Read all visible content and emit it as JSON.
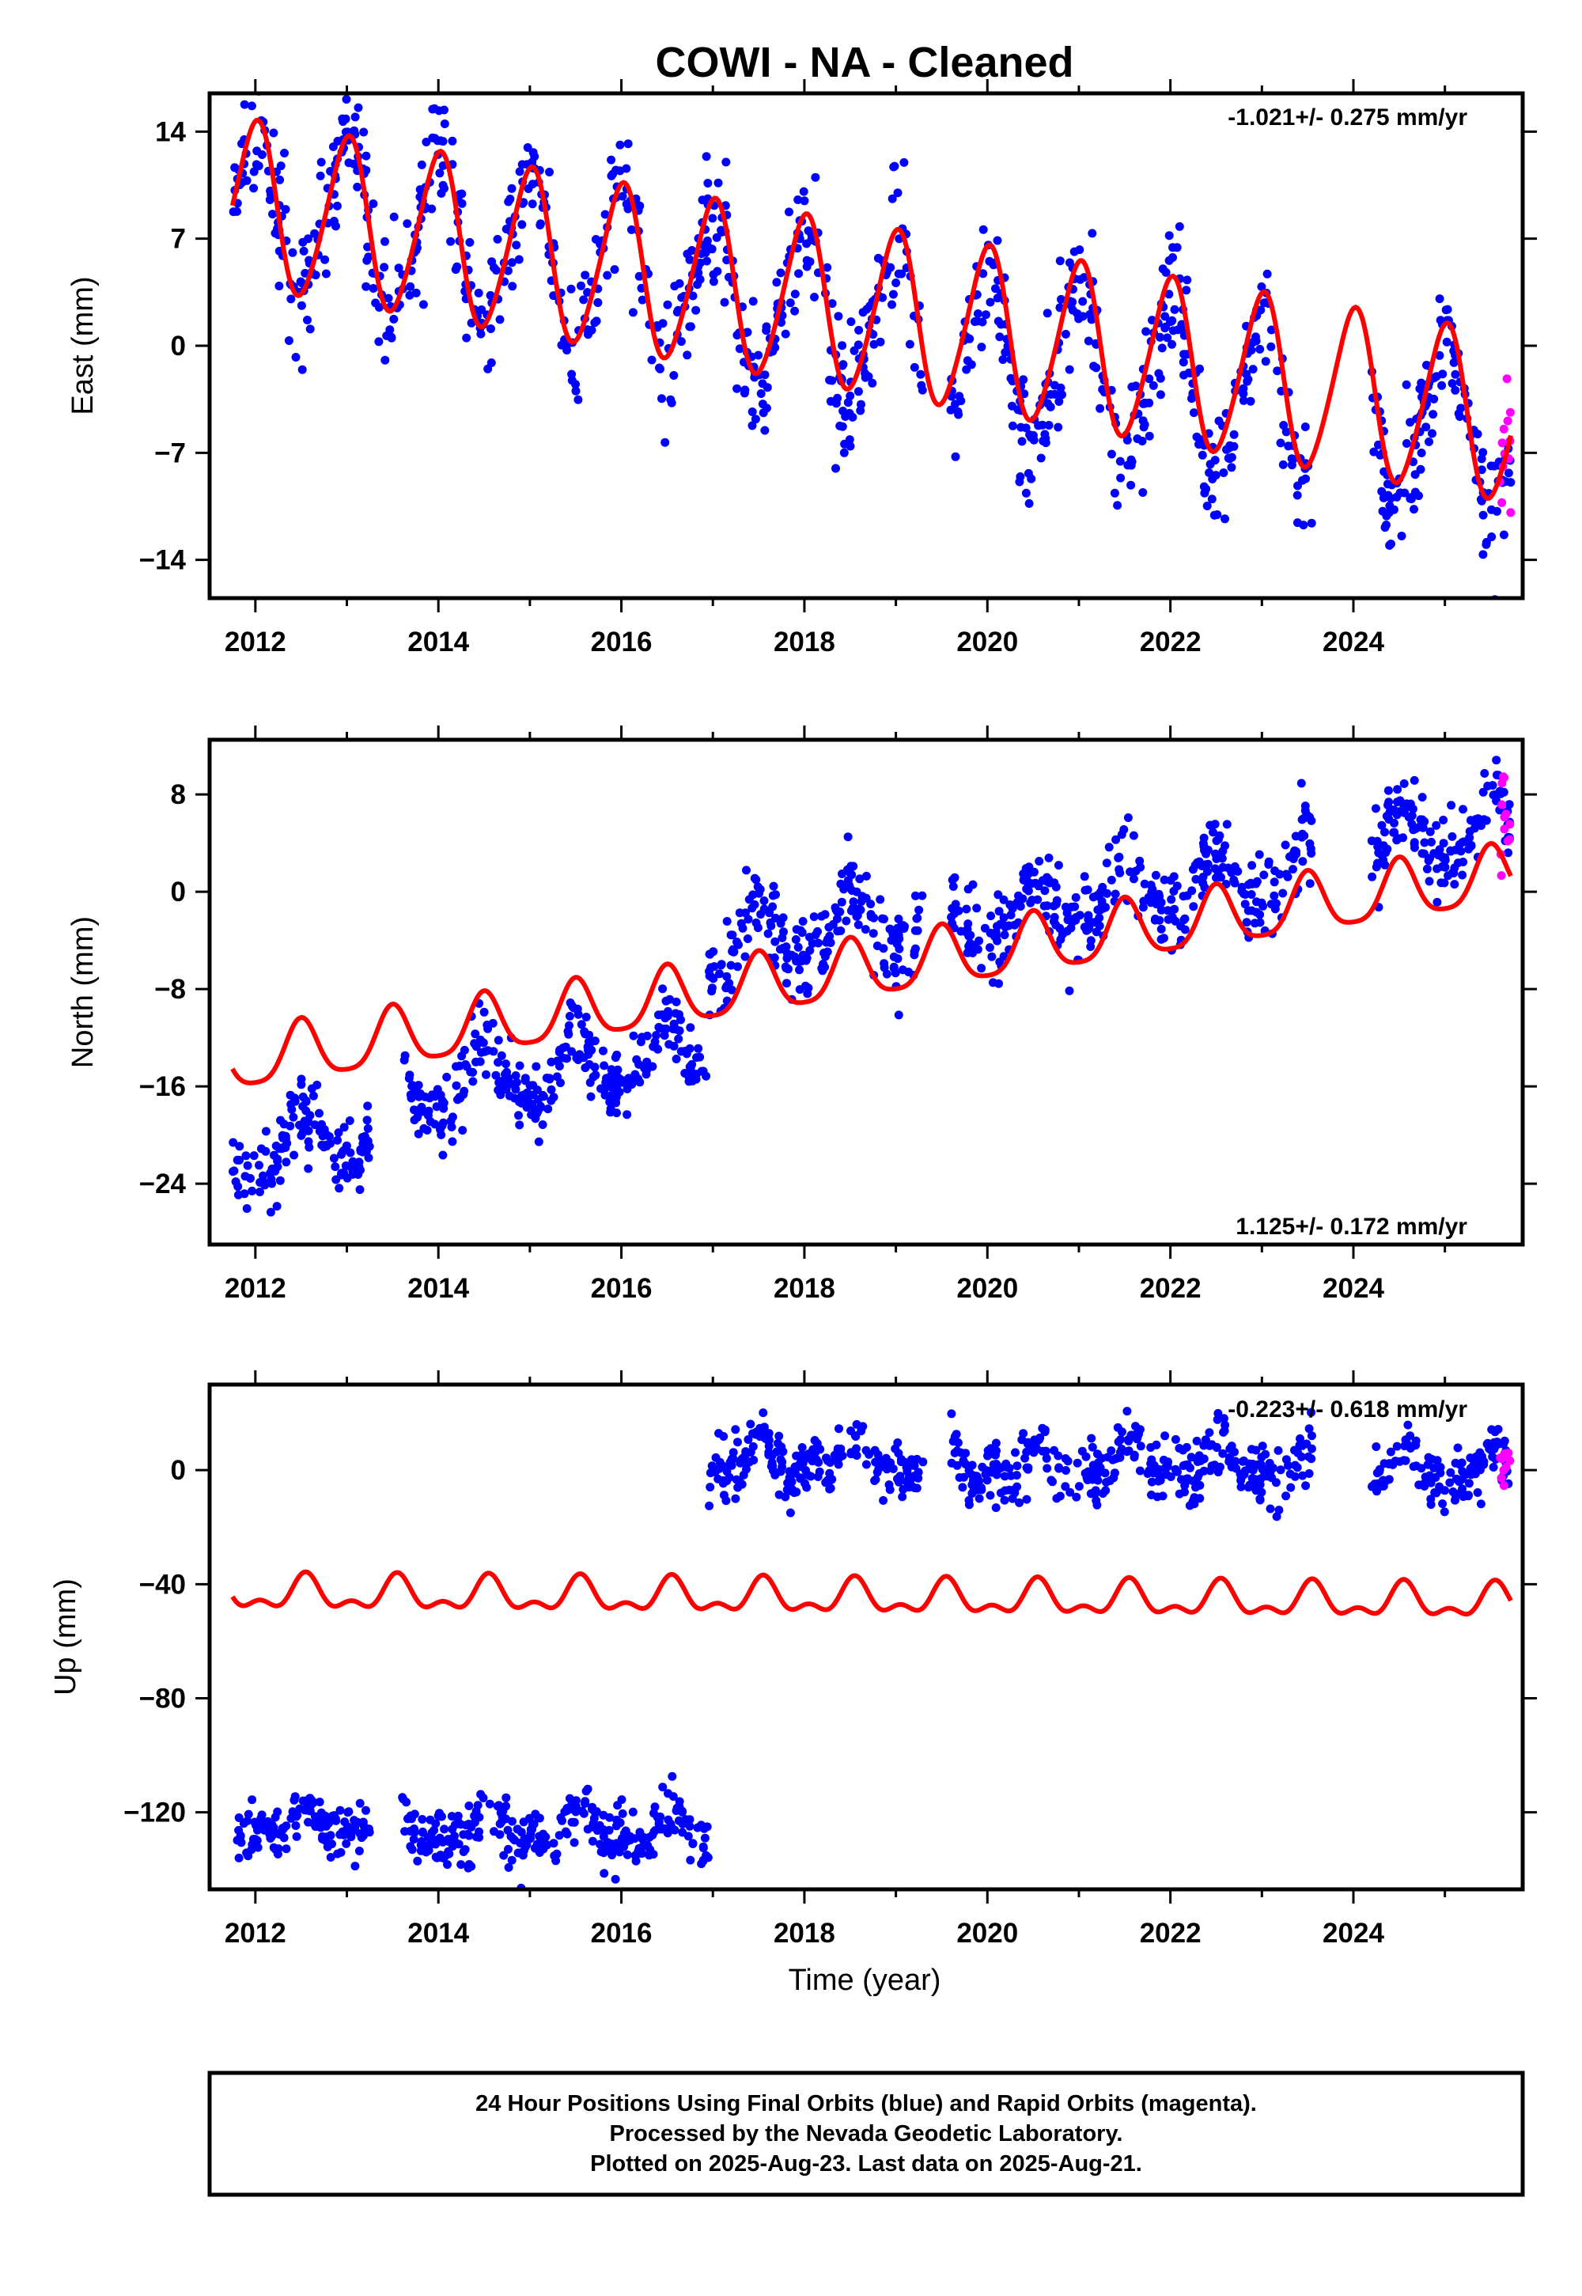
{
  "title": "COWI  - NA - Cleaned",
  "colors": {
    "final": "#0000ff",
    "rapid": "#ff00ff",
    "model": "#ff0000",
    "frame": "#000000"
  },
  "chart_data": [
    {
      "type": "scatter",
      "component": "east",
      "ylabel": "East (mm)",
      "rate_text": "-1.021+/- 0.275 mm/yr",
      "xlim": [
        2011.5,
        2025.85
      ],
      "ylim": [
        -16.5,
        16.5
      ],
      "yticks": [
        14,
        7,
        0,
        -7,
        -14
      ],
      "ytick_labels": [
        "14",
        "7",
        "0",
        "−7",
        "−14"
      ],
      "xticks": [
        2012,
        2014,
        2016,
        2018,
        2020,
        2022,
        2024
      ],
      "model": {
        "t0": 2011.8,
        "y0": 9.3,
        "rate": -1.02,
        "annual_amp": 5.4,
        "annual_peak": 0.0,
        "semi_amp": 0.6,
        "semi_peak": 0.1,
        "range": [
          2011.75,
          2025.72
        ]
      },
      "observed": [
        {
          "start": 2011.75,
          "end": 2016.95,
          "offset": 0.0,
          "scatter": 2.0,
          "count": 420
        },
        {
          "start": 2016.95,
          "end": 2019.3,
          "offset": -1.0,
          "scatter": 2.2,
          "count": 200
        },
        {
          "start": 2019.6,
          "end": 2023.55,
          "offset": -1.5,
          "scatter": 2.0,
          "count": 330
        },
        {
          "start": 2024.2,
          "end": 2025.72,
          "offset": -1.0,
          "scatter": 2.0,
          "count": 140
        }
      ],
      "rapid": {
        "start": 2025.6,
        "end": 2025.72,
        "center": -6.0,
        "scatter": 2.5,
        "count": 12
      }
    },
    {
      "type": "scatter",
      "component": "north",
      "ylabel": "North (mm)",
      "rate_text": "1.125+/- 0.172 mm/yr",
      "xlim": [
        2011.5,
        2025.85
      ],
      "ylim": [
        -29,
        12.5
      ],
      "yticks": [
        8,
        0,
        -8,
        -16,
        -24
      ],
      "ytick_labels": [
        "8",
        "0",
        "−8",
        "−16",
        "−24"
      ],
      "xticks": [
        2012,
        2014,
        2016,
        2018,
        2020,
        2022,
        2024
      ],
      "model": {
        "t0": 2011.8,
        "y0": -14.0,
        "rate": 1.1,
        "annual_amp": 2.4,
        "annual_peak": 0.5,
        "semi_amp": 0.5,
        "semi_peak": 0.0,
        "range": [
          2011.75,
          2025.72
        ]
      },
      "observed": [
        {
          "start": 2011.75,
          "end": 2013.25,
          "offset": -7.5,
          "scatter": 1.5,
          "count": 140
        },
        {
          "start": 2013.6,
          "end": 2016.95,
          "offset": -4.5,
          "scatter": 1.6,
          "count": 300
        },
        {
          "start": 2016.95,
          "end": 2019.3,
          "offset": 3.5,
          "scatter": 1.8,
          "count": 210
        },
        {
          "start": 2019.6,
          "end": 2023.55,
          "offset": 3.0,
          "scatter": 1.7,
          "count": 340
        },
        {
          "start": 2024.2,
          "end": 2025.72,
          "offset": 4.0,
          "scatter": 1.5,
          "count": 140
        }
      ],
      "rapid": {
        "start": 2025.6,
        "end": 2025.72,
        "center": 6.0,
        "scatter": 2.5,
        "count": 12
      }
    },
    {
      "type": "scatter",
      "component": "up",
      "ylabel": "Up (mm)",
      "rate_text": "-0.223+/- 0.618 mm/yr",
      "xlim": [
        2011.5,
        2025.85
      ],
      "ylim": [
        -147,
        30
      ],
      "yticks": [
        0,
        -40,
        -80,
        -120
      ],
      "ytick_labels": [
        "0",
        "−40",
        "−80",
        "−120"
      ],
      "xticks": [
        2012,
        2014,
        2016,
        2018,
        2020,
        2022,
        2024
      ],
      "model": {
        "t0": 2011.8,
        "y0": -43.5,
        "rate": -0.22,
        "annual_amp": 5.0,
        "annual_peak": 0.55,
        "semi_amp": 3.0,
        "semi_peak": 0.05,
        "range": [
          2011.75,
          2025.72
        ]
      },
      "observed": [
        {
          "start": 2011.75,
          "end": 2013.25,
          "offset": -80.0,
          "scatter": 4.5,
          "count": 140
        },
        {
          "start": 2013.6,
          "end": 2016.95,
          "offset": -82.0,
          "scatter": 5.0,
          "count": 300
        },
        {
          "start": 2016.95,
          "end": 2019.3,
          "offset": 48.0,
          "scatter": 5.0,
          "count": 210
        },
        {
          "start": 2019.6,
          "end": 2023.55,
          "offset": 47.0,
          "scatter": 5.5,
          "count": 340
        },
        {
          "start": 2024.2,
          "end": 2025.72,
          "offset": 47.0,
          "scatter": 5.0,
          "count": 140
        }
      ],
      "rapid": {
        "start": 2025.6,
        "end": 2025.72,
        "center": 3.0,
        "scatter": 4.0,
        "count": 12
      }
    }
  ],
  "x_tick_labels": [
    "2012",
    "2014",
    "2016",
    "2018",
    "2020",
    "2022",
    "2024"
  ],
  "xlabel": "Time (year)",
  "footer": {
    "line1": "24 Hour Positions Using Final Orbits (blue) and Rapid Orbits (magenta).",
    "line2": "Processed by the Nevada Geodetic Laboratory.",
    "line3": "Plotted on 2025-Aug-23. Last data on 2025-Aug-21."
  }
}
